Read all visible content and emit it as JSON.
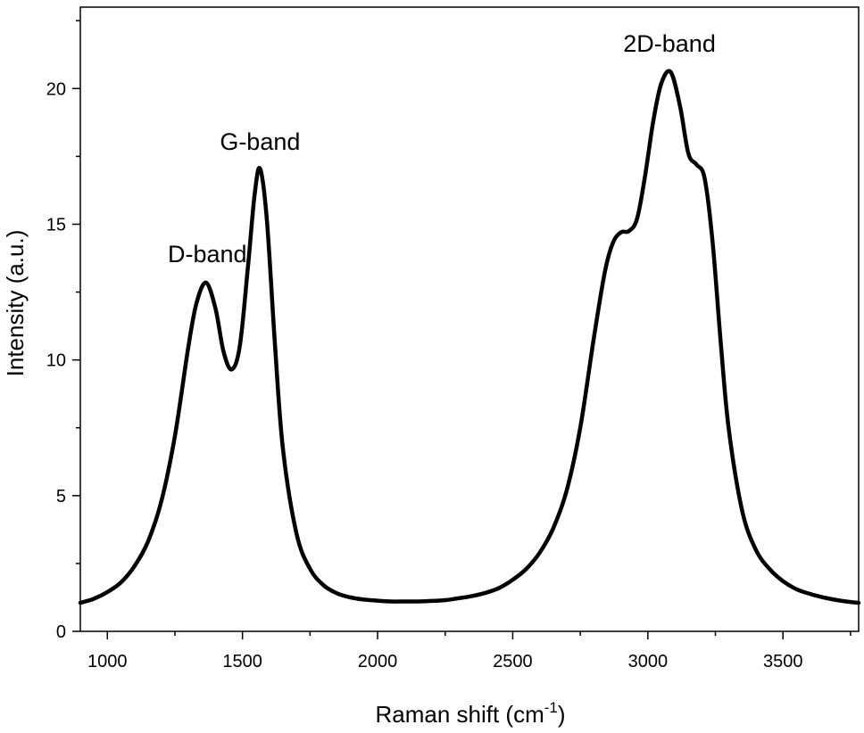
{
  "chart_data": {
    "type": "line",
    "title": "",
    "xlabel": "Raman shift (cm",
    "xlabel_sup": "-1",
    "xlabel_suffix": ")",
    "ylabel": "Intensity (a.u.)",
    "xlim": [
      900,
      3780
    ],
    "ylim": [
      0,
      23
    ],
    "xticks": [
      1000,
      1500,
      2000,
      2500,
      3000,
      3500
    ],
    "yticks": [
      0,
      5,
      10,
      15,
      20
    ],
    "grid": false,
    "line_color": "#000000",
    "series": [
      {
        "x": [
          900,
          950,
          1000,
          1050,
          1100,
          1150,
          1200,
          1250,
          1300,
          1330,
          1365,
          1400,
          1430,
          1460,
          1490,
          1520,
          1545,
          1565,
          1590,
          1620,
          1650,
          1700,
          1750,
          1800,
          1850,
          1900,
          1950,
          2000,
          2050,
          2100,
          2150,
          2200,
          2250,
          2300,
          2350,
          2400,
          2450,
          2500,
          2550,
          2600,
          2650,
          2700,
          2750,
          2800,
          2840,
          2870,
          2900,
          2930,
          2960,
          2990,
          3020,
          3050,
          3085,
          3120,
          3150,
          3180,
          3210,
          3240,
          3270,
          3300,
          3350,
          3400,
          3450,
          3500,
          3550,
          3600,
          3650,
          3700,
          3750,
          3780
        ],
        "y": [
          1.05,
          1.2,
          1.45,
          1.8,
          2.4,
          3.3,
          4.8,
          7.2,
          10.5,
          12.1,
          12.85,
          11.9,
          10.3,
          9.65,
          10.5,
          13.4,
          16.1,
          17.05,
          15.2,
          10.6,
          6.7,
          3.6,
          2.3,
          1.7,
          1.4,
          1.25,
          1.17,
          1.13,
          1.1,
          1.1,
          1.1,
          1.12,
          1.15,
          1.22,
          1.3,
          1.42,
          1.6,
          1.9,
          2.3,
          2.9,
          3.8,
          5.2,
          7.5,
          10.8,
          13.2,
          14.3,
          14.7,
          14.75,
          15.2,
          16.8,
          18.8,
          20.2,
          20.6,
          19.3,
          17.6,
          17.2,
          16.7,
          14.3,
          10.6,
          7.4,
          4.4,
          3.0,
          2.3,
          1.85,
          1.55,
          1.38,
          1.25,
          1.15,
          1.08,
          1.05
        ]
      }
    ],
    "annotations": [
      {
        "text": "D-band",
        "x": 1370,
        "y": 13.6
      },
      {
        "text": "G-band",
        "x": 1565,
        "y": 17.75
      },
      {
        "text": "2D-band",
        "x": 3080,
        "y": 21.35
      }
    ]
  }
}
